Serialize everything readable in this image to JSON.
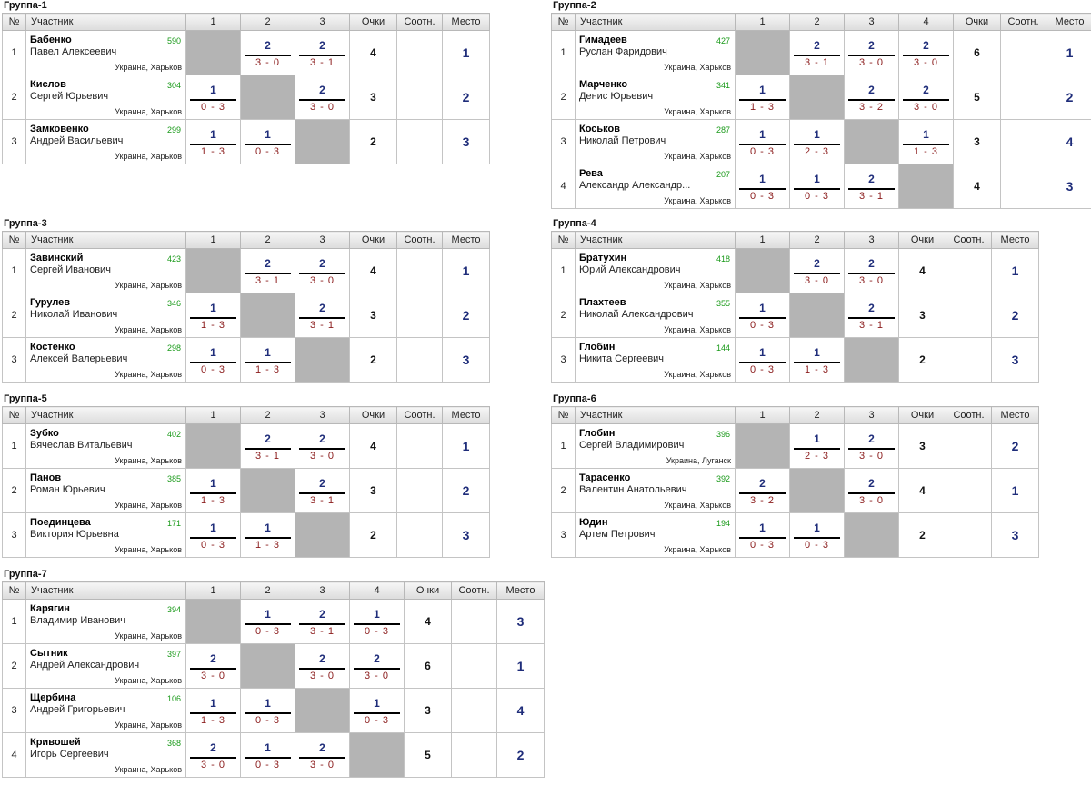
{
  "header": {
    "num": "№",
    "participant": "Участник",
    "points": "Очки",
    "ratio": "Соотн.",
    "place": "Место"
  },
  "groups": [
    {
      "title": "Группа-1",
      "rows": [
        {
          "num": "1",
          "surname": "Бабенко",
          "first": "Павел Алексеевич",
          "rating": "590",
          "city": "Украина, Харьков",
          "results": [
            null,
            {
              "p": "2",
              "s": "3 - 0"
            },
            {
              "p": "2",
              "s": "3 - 1"
            }
          ],
          "points": "4",
          "ratio": "",
          "place": "1"
        },
        {
          "num": "2",
          "surname": "Кислов",
          "first": "Сергей Юрьевич",
          "rating": "304",
          "city": "Украина, Харьков",
          "results": [
            {
              "p": "1",
              "s": "0 - 3"
            },
            null,
            {
              "p": "2",
              "s": "3 - 0"
            }
          ],
          "points": "3",
          "ratio": "",
          "place": "2"
        },
        {
          "num": "3",
          "surname": "Замковенко",
          "first": "Андрей Васильевич",
          "rating": "299",
          "city": "Украина, Харьков",
          "results": [
            {
              "p": "1",
              "s": "1 - 3"
            },
            {
              "p": "1",
              "s": "0 - 3"
            },
            null
          ],
          "points": "2",
          "ratio": "",
          "place": "3"
        }
      ]
    },
    {
      "title": "Группа-2",
      "rows": [
        {
          "num": "1",
          "surname": "Гимадеев",
          "first": "Руслан Фаридович",
          "rating": "427",
          "city": "Украина, Харьков",
          "results": [
            null,
            {
              "p": "2",
              "s": "3 - 1"
            },
            {
              "p": "2",
              "s": "3 - 0"
            },
            {
              "p": "2",
              "s": "3 - 0"
            }
          ],
          "points": "6",
          "ratio": "",
          "place": "1"
        },
        {
          "num": "2",
          "surname": "Марченко",
          "first": "Денис Юрьевич",
          "rating": "341",
          "city": "Украина, Харьков",
          "results": [
            {
              "p": "1",
              "s": "1 - 3"
            },
            null,
            {
              "p": "2",
              "s": "3 - 2"
            },
            {
              "p": "2",
              "s": "3 - 0"
            }
          ],
          "points": "5",
          "ratio": "",
          "place": "2"
        },
        {
          "num": "3",
          "surname": "Коськов",
          "first": "Николай Петрович",
          "rating": "287",
          "city": "Украина, Харьков",
          "results": [
            {
              "p": "1",
              "s": "0 - 3"
            },
            {
              "p": "1",
              "s": "2 - 3"
            },
            null,
            {
              "p": "1",
              "s": "1 - 3"
            }
          ],
          "points": "3",
          "ratio": "",
          "place": "4"
        },
        {
          "num": "4",
          "surname": "Рева",
          "first": "Александр Александр...",
          "rating": "207",
          "city": "Украина, Харьков",
          "results": [
            {
              "p": "1",
              "s": "0 - 3"
            },
            {
              "p": "1",
              "s": "0 - 3"
            },
            {
              "p": "2",
              "s": "3 - 1"
            },
            null
          ],
          "points": "4",
          "ratio": "",
          "place": "3"
        }
      ]
    },
    {
      "title": "Группа-3",
      "rows": [
        {
          "num": "1",
          "surname": "Завинский",
          "first": "Сергей Иванович",
          "rating": "423",
          "city": "Украина, Харьков",
          "results": [
            null,
            {
              "p": "2",
              "s": "3 - 1"
            },
            {
              "p": "2",
              "s": "3 - 0"
            }
          ],
          "points": "4",
          "ratio": "",
          "place": "1"
        },
        {
          "num": "2",
          "surname": "Гурулев",
          "first": "Николай Иванович",
          "rating": "346",
          "city": "Украина, Харьков",
          "results": [
            {
              "p": "1",
              "s": "1 - 3"
            },
            null,
            {
              "p": "2",
              "s": "3 - 1"
            }
          ],
          "points": "3",
          "ratio": "",
          "place": "2"
        },
        {
          "num": "3",
          "surname": "Костенко",
          "first": "Алексей Валерьевич",
          "rating": "298",
          "city": "Украина, Харьков",
          "results": [
            {
              "p": "1",
              "s": "0 - 3"
            },
            {
              "p": "1",
              "s": "1 - 3"
            },
            null
          ],
          "points": "2",
          "ratio": "",
          "place": "3"
        }
      ]
    },
    {
      "title": "Группа-4",
      "rows": [
        {
          "num": "1",
          "surname": "Братухин",
          "first": "Юрий Александрович",
          "rating": "418",
          "city": "Украина, Харьков",
          "results": [
            null,
            {
              "p": "2",
              "s": "3 - 0"
            },
            {
              "p": "2",
              "s": "3 - 0"
            }
          ],
          "points": "4",
          "ratio": "",
          "place": "1"
        },
        {
          "num": "2",
          "surname": "Плахтеев",
          "first": "Николай Александрович",
          "rating": "355",
          "city": "Украина, Харьков",
          "results": [
            {
              "p": "1",
              "s": "0 - 3"
            },
            null,
            {
              "p": "2",
              "s": "3 - 1"
            }
          ],
          "points": "3",
          "ratio": "",
          "place": "2"
        },
        {
          "num": "3",
          "surname": "Глобин",
          "first": "Никита Сергеевич",
          "rating": "144",
          "city": "Украина, Харьков",
          "results": [
            {
              "p": "1",
              "s": "0 - 3"
            },
            {
              "p": "1",
              "s": "1 - 3"
            },
            null
          ],
          "points": "2",
          "ratio": "",
          "place": "3"
        }
      ]
    },
    {
      "title": "Группа-5",
      "rows": [
        {
          "num": "1",
          "surname": "Зубко",
          "first": "Вячеслав Витальевич",
          "rating": "402",
          "city": "Украина, Харьков",
          "results": [
            null,
            {
              "p": "2",
              "s": "3 - 1"
            },
            {
              "p": "2",
              "s": "3 - 0"
            }
          ],
          "points": "4",
          "ratio": "",
          "place": "1"
        },
        {
          "num": "2",
          "surname": "Панов",
          "first": "Роман Юрьевич",
          "rating": "385",
          "city": "Украина, Харьков",
          "results": [
            {
              "p": "1",
              "s": "1 - 3"
            },
            null,
            {
              "p": "2",
              "s": "3 - 1"
            }
          ],
          "points": "3",
          "ratio": "",
          "place": "2"
        },
        {
          "num": "3",
          "surname": "Поединцева",
          "first": "Виктория Юрьевна",
          "rating": "171",
          "city": "Украина, Харьков",
          "results": [
            {
              "p": "1",
              "s": "0 - 3"
            },
            {
              "p": "1",
              "s": "1 - 3"
            },
            null
          ],
          "points": "2",
          "ratio": "",
          "place": "3"
        }
      ]
    },
    {
      "title": "Группа-6",
      "rows": [
        {
          "num": "1",
          "surname": "Глобин",
          "first": "Сергей Владимирович",
          "rating": "396",
          "city": "Украина, Луганск",
          "results": [
            null,
            {
              "p": "1",
              "s": "2 - 3"
            },
            {
              "p": "2",
              "s": "3 - 0"
            }
          ],
          "points": "3",
          "ratio": "",
          "place": "2"
        },
        {
          "num": "2",
          "surname": "Тарасенко",
          "first": "Валентин Анатольевич",
          "rating": "392",
          "city": "Украина, Харьков",
          "results": [
            {
              "p": "2",
              "s": "3 - 2"
            },
            null,
            {
              "p": "2",
              "s": "3 - 0"
            }
          ],
          "points": "4",
          "ratio": "",
          "place": "1"
        },
        {
          "num": "3",
          "surname": "Юдин",
          "first": "Артем Петрович",
          "rating": "194",
          "city": "Украина, Харьков",
          "results": [
            {
              "p": "1",
              "s": "0 - 3"
            },
            {
              "p": "1",
              "s": "0 - 3"
            },
            null
          ],
          "points": "2",
          "ratio": "",
          "place": "3"
        }
      ]
    },
    {
      "title": "Группа-7",
      "rows": [
        {
          "num": "1",
          "surname": "Карягин",
          "first": "Владимир Иванович",
          "rating": "394",
          "city": "Украина, Харьков",
          "results": [
            null,
            {
              "p": "1",
              "s": "0 - 3"
            },
            {
              "p": "2",
              "s": "3 - 1"
            },
            {
              "p": "1",
              "s": "0 - 3"
            }
          ],
          "points": "4",
          "ratio": "",
          "place": "3"
        },
        {
          "num": "2",
          "surname": "Сытник",
          "first": "Андрей Александрович",
          "rating": "397",
          "city": "Украина, Харьков",
          "results": [
            {
              "p": "2",
              "s": "3 - 0"
            },
            null,
            {
              "p": "2",
              "s": "3 - 0"
            },
            {
              "p": "2",
              "s": "3 - 0"
            }
          ],
          "points": "6",
          "ratio": "",
          "place": "1"
        },
        {
          "num": "3",
          "surname": "Щербина",
          "first": "Андрей Григорьевич",
          "rating": "106",
          "city": "Украина, Харьков",
          "results": [
            {
              "p": "1",
              "s": "1 - 3"
            },
            {
              "p": "1",
              "s": "0 - 3"
            },
            null,
            {
              "p": "1",
              "s": "0 - 3"
            }
          ],
          "points": "3",
          "ratio": "",
          "place": "4"
        },
        {
          "num": "4",
          "surname": "Кривошей",
          "first": "Игорь Сергеевич",
          "rating": "368",
          "city": "Украина, Харьков",
          "results": [
            {
              "p": "2",
              "s": "3 - 0"
            },
            {
              "p": "1",
              "s": "0 - 3"
            },
            {
              "p": "2",
              "s": "3 - 0"
            },
            null
          ],
          "points": "5",
          "ratio": "",
          "place": "2"
        }
      ]
    }
  ]
}
